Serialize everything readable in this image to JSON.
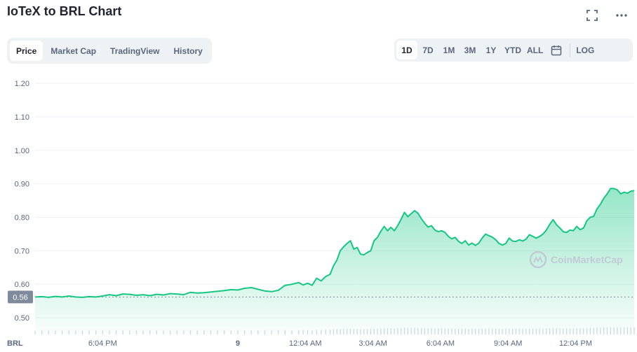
{
  "title": "IoTeX to BRL Chart",
  "icons": {
    "fullscreen": "fullscreen-icon",
    "more": "more-icon",
    "calendar": "calendar-icon"
  },
  "tabs": [
    {
      "label": "Price",
      "active": true
    },
    {
      "label": "Market Cap",
      "active": false
    },
    {
      "label": "TradingView",
      "active": false
    },
    {
      "label": "History",
      "active": false
    }
  ],
  "ranges": [
    {
      "label": "1D",
      "active": true
    },
    {
      "label": "7D",
      "active": false
    },
    {
      "label": "1M",
      "active": false
    },
    {
      "label": "3M",
      "active": false
    },
    {
      "label": "1Y",
      "active": false
    },
    {
      "label": "YTD",
      "active": false
    },
    {
      "label": "ALL",
      "active": false
    }
  ],
  "log_label": "LOG",
  "watermark": "CoinMarketCap",
  "colors": {
    "line": "#16c784",
    "grid": "#eff2f5",
    "badge": "#808a9d",
    "volume": "#cfd6e4"
  },
  "chart_data": {
    "type": "area",
    "currency_label": "BRL",
    "current_price_label": "0.56",
    "current_price": 0.562,
    "ylim": [
      0.45,
      1.24
    ],
    "y_ticks": [
      "1.20",
      "1.10",
      "1.00",
      "0.90",
      "0.80",
      "0.70",
      "0.60",
      "0.50"
    ],
    "x_ticks": [
      "6:04 PM",
      "9",
      "12:04 AM",
      "3:04 AM",
      "6:04 AM",
      "9:04 AM",
      "12:04 PM"
    ],
    "x_tick_hours": [
      3,
      9,
      12,
      15,
      18,
      21,
      24
    ],
    "x_range_hours": [
      0,
      26.6
    ],
    "series": [
      {
        "values": [
          [
            0.0,
            0.562
          ],
          [
            0.3,
            0.563
          ],
          [
            0.6,
            0.561
          ],
          [
            0.9,
            0.564
          ],
          [
            1.2,
            0.562
          ],
          [
            1.5,
            0.565
          ],
          [
            1.8,
            0.562
          ],
          [
            2.1,
            0.561
          ],
          [
            2.4,
            0.563
          ],
          [
            2.7,
            0.562
          ],
          [
            3.0,
            0.565
          ],
          [
            3.3,
            0.569
          ],
          [
            3.6,
            0.566
          ],
          [
            3.9,
            0.571
          ],
          [
            4.2,
            0.57
          ],
          [
            4.5,
            0.567
          ],
          [
            4.8,
            0.569
          ],
          [
            5.1,
            0.566
          ],
          [
            5.4,
            0.57
          ],
          [
            5.7,
            0.568
          ],
          [
            6.0,
            0.572
          ],
          [
            6.3,
            0.571
          ],
          [
            6.6,
            0.569
          ],
          [
            6.9,
            0.576
          ],
          [
            7.2,
            0.574
          ],
          [
            7.5,
            0.575
          ],
          [
            7.8,
            0.577
          ],
          [
            8.1,
            0.579
          ],
          [
            8.4,
            0.581
          ],
          [
            8.7,
            0.584
          ],
          [
            9.0,
            0.583
          ],
          [
            9.3,
            0.588
          ],
          [
            9.6,
            0.59
          ],
          [
            9.9,
            0.585
          ],
          [
            10.2,
            0.58
          ],
          [
            10.5,
            0.578
          ],
          [
            10.8,
            0.582
          ],
          [
            11.1,
            0.597
          ],
          [
            11.4,
            0.6
          ],
          [
            11.7,
            0.605
          ],
          [
            11.9,
            0.598
          ],
          [
            12.1,
            0.603
          ],
          [
            12.3,
            0.597
          ],
          [
            12.5,
            0.618
          ],
          [
            12.7,
            0.61
          ],
          [
            12.9,
            0.623
          ],
          [
            13.1,
            0.63
          ],
          [
            13.25,
            0.655
          ],
          [
            13.4,
            0.672
          ],
          [
            13.55,
            0.7
          ],
          [
            13.7,
            0.712
          ],
          [
            13.85,
            0.722
          ],
          [
            14.0,
            0.73
          ],
          [
            14.15,
            0.705
          ],
          [
            14.3,
            0.71
          ],
          [
            14.45,
            0.69
          ],
          [
            14.6,
            0.688
          ],
          [
            14.75,
            0.695
          ],
          [
            14.9,
            0.7
          ],
          [
            15.05,
            0.73
          ],
          [
            15.2,
            0.74
          ],
          [
            15.35,
            0.758
          ],
          [
            15.5,
            0.773
          ],
          [
            15.65,
            0.76
          ],
          [
            15.8,
            0.77
          ],
          [
            15.95,
            0.76
          ],
          [
            16.1,
            0.775
          ],
          [
            16.25,
            0.794
          ],
          [
            16.4,
            0.815
          ],
          [
            16.55,
            0.802
          ],
          [
            16.7,
            0.811
          ],
          [
            16.85,
            0.82
          ],
          [
            17.0,
            0.812
          ],
          [
            17.15,
            0.796
          ],
          [
            17.3,
            0.782
          ],
          [
            17.45,
            0.771
          ],
          [
            17.6,
            0.775
          ],
          [
            17.75,
            0.762
          ],
          [
            17.9,
            0.757
          ],
          [
            18.05,
            0.76
          ],
          [
            18.2,
            0.755
          ],
          [
            18.35,
            0.743
          ],
          [
            18.5,
            0.736
          ],
          [
            18.65,
            0.74
          ],
          [
            18.8,
            0.728
          ],
          [
            18.95,
            0.722
          ],
          [
            19.1,
            0.73
          ],
          [
            19.25,
            0.717
          ],
          [
            19.4,
            0.723
          ],
          [
            19.55,
            0.716
          ],
          [
            19.7,
            0.723
          ],
          [
            19.85,
            0.738
          ],
          [
            20.0,
            0.75
          ],
          [
            20.15,
            0.745
          ],
          [
            20.3,
            0.741
          ],
          [
            20.45,
            0.733
          ],
          [
            20.6,
            0.722
          ],
          [
            20.75,
            0.717
          ],
          [
            20.9,
            0.722
          ],
          [
            21.05,
            0.738
          ],
          [
            21.2,
            0.729
          ],
          [
            21.35,
            0.728
          ],
          [
            21.5,
            0.733
          ],
          [
            21.65,
            0.729
          ],
          [
            21.8,
            0.735
          ],
          [
            21.95,
            0.748
          ],
          [
            22.1,
            0.743
          ],
          [
            22.25,
            0.738
          ],
          [
            22.4,
            0.743
          ],
          [
            22.55,
            0.75
          ],
          [
            22.7,
            0.762
          ],
          [
            22.85,
            0.779
          ],
          [
            23.0,
            0.793
          ],
          [
            23.15,
            0.778
          ],
          [
            23.3,
            0.768
          ],
          [
            23.45,
            0.757
          ],
          [
            23.6,
            0.755
          ],
          [
            23.75,
            0.762
          ],
          [
            23.9,
            0.76
          ],
          [
            24.05,
            0.773
          ],
          [
            24.2,
            0.763
          ],
          [
            24.35,
            0.768
          ],
          [
            24.5,
            0.79
          ],
          [
            24.65,
            0.8
          ],
          [
            24.8,
            0.803
          ],
          [
            24.95,
            0.825
          ],
          [
            25.1,
            0.839
          ],
          [
            25.25,
            0.857
          ],
          [
            25.4,
            0.87
          ],
          [
            25.55,
            0.886
          ],
          [
            25.7,
            0.886
          ],
          [
            25.85,
            0.882
          ],
          [
            26.0,
            0.87
          ],
          [
            26.15,
            0.875
          ],
          [
            26.3,
            0.872
          ],
          [
            26.45,
            0.878
          ],
          [
            26.6,
            0.88
          ]
        ]
      }
    ]
  }
}
